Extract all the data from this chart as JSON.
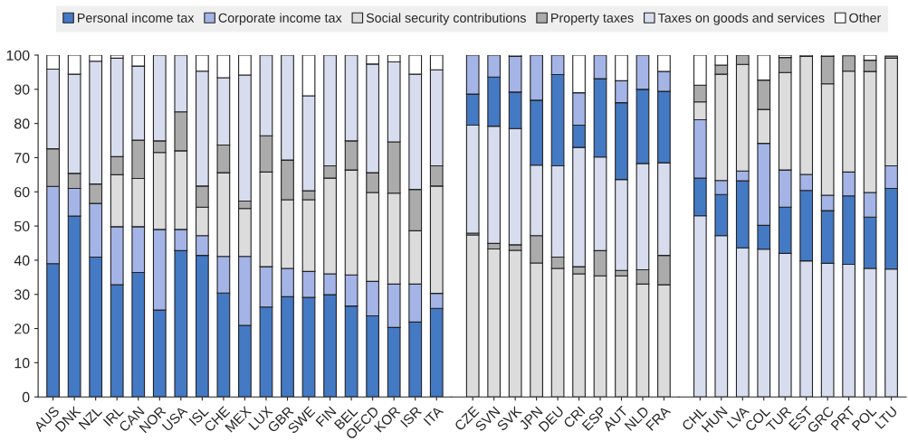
{
  "chart_data": [
    {
      "type": "bar",
      "stacked": true,
      "legend": "top",
      "ylim": [
        0,
        100
      ],
      "yticks": [
        0,
        10,
        20,
        30,
        40,
        50,
        60,
        70,
        80,
        90,
        100
      ],
      "categories": [
        "AUS",
        "DNK",
        "NZL",
        "IRL",
        "CAN",
        "NOR",
        "USA",
        "ISL",
        "CHE",
        "MEX",
        "LUX",
        "GBR",
        "SWE",
        "FIN",
        "BEL",
        "OECD",
        "KOR",
        "ISR",
        "ITA"
      ],
      "series": [
        {
          "name": "Personal income tax",
          "color": "#4479c4",
          "values": [
            39.0,
            52.9,
            40.9,
            32.8,
            36.4,
            25.4,
            42.8,
            41.4,
            30.4,
            20.9,
            26.3,
            29.3,
            29.1,
            29.9,
            26.6,
            23.7,
            20.3,
            21.9,
            25.9
          ]
        },
        {
          "name": "Corporate income tax",
          "color": "#a4b4e6",
          "values": [
            22.6,
            8.1,
            15.7,
            17.0,
            13.4,
            23.6,
            6.2,
            5.8,
            10.7,
            20.2,
            11.8,
            8.3,
            7.6,
            6.1,
            9.1,
            10.1,
            12.7,
            11.1,
            4.4
          ]
        },
        {
          "name": "Social security contributions",
          "color": "#dcdcdc",
          "values": [
            null,
            null,
            null,
            15.2,
            14.1,
            22.5,
            23.0,
            8.3,
            24.5,
            14.0,
            27.7,
            20.1,
            21.0,
            28.0,
            30.7,
            26.0,
            26.6,
            15.6,
            31.4
          ]
        },
        {
          "name": "Property taxes",
          "color": "#ababab",
          "values": [
            11.0,
            4.4,
            5.7,
            5.3,
            11.2,
            3.4,
            11.4,
            6.2,
            8.1,
            2.2,
            10.6,
            11.6,
            2.6,
            3.6,
            8.5,
            5.8,
            15.0,
            12.1,
            5.9
          ]
        },
        {
          "name": "Taxes on goods and services",
          "color": "#d7ddee",
          "values": [
            23.3,
            29.0,
            35.9,
            28.8,
            21.7,
            25.1,
            16.6,
            33.6,
            19.7,
            36.9,
            23.6,
            30.7,
            27.8,
            32.4,
            25.1,
            31.8,
            23.4,
            33.7,
            28.1
          ]
        },
        {
          "name": "Other",
          "color": "#ffffff",
          "values": [
            4.1,
            5.6,
            1.8,
            0.9,
            3.2,
            null,
            null,
            4.7,
            6.6,
            5.8,
            null,
            null,
            11.9,
            null,
            null,
            2.6,
            2.0,
            5.6,
            4.3
          ]
        }
      ]
    },
    {
      "type": "bar",
      "stacked": true,
      "ylim": [
        0,
        100
      ],
      "tick_labels": "x",
      "categories": [
        "CZE",
        "SVN",
        "SVK",
        "JPN",
        "DEU",
        "CRI",
        "ESP",
        "AUT",
        "NLD",
        "FRA"
      ],
      "series": [
        {
          "name": "Social security contributions",
          "color": "#dcdcdc",
          "values": [
            47.4,
            43.3,
            42.9,
            39.2,
            37.6,
            36.0,
            35.4,
            35.4,
            33.0,
            32.8
          ]
        },
        {
          "name": "Property taxes",
          "color": "#ababab",
          "values": [
            0.5,
            1.6,
            1.6,
            8.0,
            3.3,
            2.1,
            7.4,
            1.6,
            4.2,
            8.6
          ]
        },
        {
          "name": "Taxes on goods and services",
          "color": "#d7ddee",
          "values": [
            31.6,
            34.3,
            34.0,
            20.6,
            26.7,
            34.9,
            27.4,
            26.6,
            31.1,
            27.1
          ]
        },
        {
          "name": "Personal income tax",
          "color": "#4479c4",
          "values": [
            9.1,
            14.4,
            10.7,
            19.0,
            26.7,
            6.5,
            22.9,
            22.5,
            21.7,
            20.9
          ]
        },
        {
          "name": "Corporate income tax",
          "color": "#a4b4e6",
          "values": [
            11.4,
            6.4,
            10.4,
            13.2,
            5.7,
            9.5,
            6.9,
            6.4,
            10.0,
            5.8
          ]
        },
        {
          "name": "Other",
          "color": "#ffffff",
          "values": [
            null,
            null,
            0.4,
            null,
            null,
            11.0,
            null,
            7.5,
            null,
            4.8
          ]
        }
      ]
    },
    {
      "type": "bar",
      "stacked": true,
      "ylim": [
        0,
        100
      ],
      "tick_labels": "x",
      "categories": [
        "CHL",
        "HUN",
        "LVA",
        "COL",
        "TUR",
        "EST",
        "GRC",
        "PRT",
        "POL",
        "LTU"
      ],
      "series": [
        {
          "name": "Taxes on goods and services",
          "color": "#d7ddee",
          "values": [
            53.0,
            47.2,
            43.6,
            43.2,
            42.0,
            39.8,
            39.1,
            38.8,
            37.6,
            37.4
          ]
        },
        {
          "name": "Personal income tax",
          "color": "#4479c4",
          "values": [
            11.0,
            12.0,
            19.6,
            7.0,
            13.5,
            20.6,
            15.4,
            20.0,
            15.0,
            23.6
          ]
        },
        {
          "name": "Corporate income tax",
          "color": "#a4b4e6",
          "values": [
            17.1,
            4.1,
            2.9,
            24.0,
            10.9,
            4.7,
            4.5,
            7.0,
            7.2,
            6.6
          ]
        },
        {
          "name": "Social security contributions",
          "color": "#dcdcdc",
          "values": [
            5.2,
            31.1,
            31.2,
            9.9,
            28.5,
            34.5,
            32.6,
            29.5,
            35.4,
            31.5
          ]
        },
        {
          "name": "Property taxes",
          "color": "#ababab",
          "values": [
            4.9,
            2.7,
            2.7,
            8.6,
            4.4,
            0.4,
            8.0,
            4.5,
            3.3,
            0.6
          ]
        },
        {
          "name": "Other",
          "color": "#ffffff",
          "values": [
            8.8,
            2.9,
            null,
            7.3,
            0.7,
            null,
            0.4,
            null,
            1.5,
            null
          ]
        }
      ]
    }
  ]
}
